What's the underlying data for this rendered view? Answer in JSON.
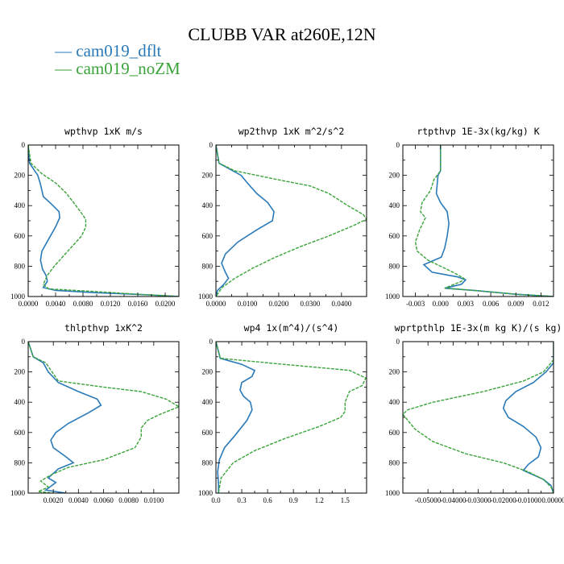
{
  "figure": {
    "title": "CLUBB VAR at260E,12N",
    "legend": [
      {
        "label": "— cam019_dflt",
        "color": "#2a7ab9"
      },
      {
        "label": "— cam019_noZM",
        "color": "#3aa33a"
      }
    ]
  },
  "chart_data": [
    {
      "type": "line",
      "title": "wpthvp  1xK m/s",
      "xlim": [
        0.0,
        0.022
      ],
      "ylim": [
        1000,
        0
      ],
      "xticks": [
        "0.0000",
        "0.0040",
        "0.0080",
        "0.0120",
        "0.0160",
        "0.0200"
      ],
      "xtick_values": [
        0.0,
        0.004,
        0.008,
        0.012,
        0.016,
        0.02
      ],
      "yticks": [
        "0",
        "200",
        "400",
        "600",
        "800",
        "1000"
      ],
      "ytick_values": [
        0,
        200,
        400,
        600,
        800,
        1000
      ],
      "series": [
        {
          "name": "cam019_dflt",
          "color": "#2a7ab9",
          "x": [
            0.0,
            0.0002,
            0.0008,
            0.0014,
            0.0018,
            0.0022,
            0.0034,
            0.0045,
            0.0046,
            0.004,
            0.003,
            0.002,
            0.0018,
            0.0021,
            0.0026,
            0.0028,
            0.0022,
            0.004,
            0.01,
            0.018,
            0.022
          ],
          "y": [
            0,
            120,
            160,
            200,
            260,
            340,
            390,
            440,
            480,
            540,
            620,
            700,
            760,
            820,
            860,
            900,
            940,
            960,
            975,
            990,
            1000
          ]
        },
        {
          "name": "cam019_noZM",
          "color": "#3aa33a",
          "x": [
            0.0,
            0.0004,
            0.002,
            0.004,
            0.0056,
            0.0068,
            0.0078,
            0.0084,
            0.0084,
            0.0078,
            0.0064,
            0.005,
            0.0038,
            0.0028,
            0.0022,
            0.003,
            0.009,
            0.016,
            0.022
          ],
          "y": [
            0,
            120,
            190,
            250,
            320,
            390,
            450,
            490,
            540,
            600,
            670,
            740,
            800,
            860,
            920,
            950,
            965,
            985,
            1000
          ]
        }
      ]
    },
    {
      "type": "line",
      "title": "wp2thvp  1xK m^2/s^2",
      "xlim": [
        0.0,
        0.048
      ],
      "ylim": [
        1000,
        0
      ],
      "xticks": [
        "0.0000",
        "0.0100",
        "0.0200",
        "0.0300",
        "0.0400"
      ],
      "xtick_values": [
        0.0,
        0.01,
        0.02,
        0.03,
        0.04
      ],
      "yticks": [
        "0",
        "200",
        "400",
        "600",
        "800",
        "1000"
      ],
      "ytick_values": [
        0,
        200,
        400,
        600,
        800,
        1000
      ],
      "series": [
        {
          "name": "cam019_dflt",
          "color": "#2a7ab9",
          "x": [
            0.0,
            0.001,
            0.008,
            0.01,
            0.013,
            0.0165,
            0.0185,
            0.018,
            0.013,
            0.007,
            0.003,
            0.0018,
            0.003,
            0.004,
            0.0025,
            0.0005,
            0.0
          ],
          "y": [
            0,
            120,
            200,
            250,
            320,
            380,
            440,
            500,
            560,
            640,
            720,
            780,
            840,
            880,
            920,
            960,
            1000
          ]
        },
        {
          "name": "cam019_noZM",
          "color": "#3aa33a",
          "x": [
            0.0,
            0.001,
            0.006,
            0.02,
            0.03,
            0.036,
            0.042,
            0.047,
            0.048,
            0.044,
            0.036,
            0.027,
            0.019,
            0.012,
            0.006,
            0.002,
            0.0
          ],
          "y": [
            0,
            120,
            170,
            230,
            270,
            320,
            400,
            460,
            490,
            530,
            600,
            670,
            740,
            810,
            880,
            940,
            1000
          ]
        }
      ]
    },
    {
      "type": "line",
      "title": "rtpthvp  1E-3x(kg/kg) K",
      "xlim": [
        -0.0045,
        0.0135
      ],
      "ylim": [
        1000,
        0
      ],
      "xticks": [
        "-0.003",
        "0.000",
        "0.003",
        "0.006",
        "0.009",
        "0.012"
      ],
      "xtick_values": [
        -0.003,
        0.0,
        0.003,
        0.006,
        0.009,
        0.012
      ],
      "yticks": [
        "0",
        "200",
        "400",
        "600",
        "800",
        "1000"
      ],
      "ytick_values": [
        0,
        200,
        400,
        600,
        800,
        1000
      ],
      "series": [
        {
          "name": "cam019_dflt",
          "color": "#2a7ab9",
          "x": [
            0.0,
            0.0,
            -0.0003,
            -0.0005,
            0.0,
            0.0008,
            0.001,
            0.0008,
            0.0005,
            0.0001,
            -0.002,
            -0.001,
            0.002,
            0.003,
            0.0025,
            0.0005,
            0.004,
            0.009,
            0.0135
          ],
          "y": [
            0,
            170,
            200,
            320,
            380,
            440,
            520,
            600,
            680,
            740,
            790,
            840,
            870,
            890,
            920,
            945,
            960,
            985,
            1000
          ]
        },
        {
          "name": "cam019_noZM",
          "color": "#3aa33a",
          "x": [
            0.0,
            0.0,
            -0.0008,
            -0.0012,
            -0.0022,
            -0.0024,
            -0.0018,
            -0.0025,
            -0.003,
            -0.0028,
            -0.0015,
            0.0015,
            0.0028,
            0.0025,
            0.0005,
            0.004,
            0.009,
            0.0135
          ],
          "y": [
            0,
            170,
            230,
            300,
            380,
            440,
            480,
            560,
            640,
            700,
            760,
            840,
            880,
            900,
            945,
            960,
            985,
            1000
          ]
        }
      ]
    },
    {
      "type": "line",
      "title": "thlpthvp  1xK^2",
      "xlim": [
        0.0,
        0.012
      ],
      "ylim": [
        1000,
        0
      ],
      "xticks": [
        "0.0020",
        "0.0040",
        "0.0060",
        "0.0080",
        "0.0100"
      ],
      "xtick_values": [
        0.002,
        0.004,
        0.006,
        0.008,
        0.01
      ],
      "yticks": [
        "0",
        "200",
        "400",
        "600",
        "800",
        "1000"
      ],
      "ytick_values": [
        0,
        200,
        400,
        600,
        800,
        1000
      ],
      "series": [
        {
          "name": "cam019_dflt",
          "color": "#2a7ab9",
          "x": [
            0.0,
            0.0004,
            0.0012,
            0.0016,
            0.0024,
            0.004,
            0.0055,
            0.0058,
            0.0048,
            0.0032,
            0.0022,
            0.0018,
            0.002,
            0.003,
            0.0036,
            0.0024,
            0.0016,
            0.0022,
            0.0014,
            0.003
          ],
          "y": [
            0,
            100,
            140,
            200,
            270,
            330,
            380,
            420,
            470,
            540,
            600,
            650,
            700,
            760,
            800,
            840,
            900,
            930,
            980,
            1000
          ]
        },
        {
          "name": "cam019_noZM",
          "color": "#3aa33a",
          "x": [
            0.0,
            0.0004,
            0.0014,
            0.0024,
            0.006,
            0.009,
            0.011,
            0.012,
            0.0105,
            0.0095,
            0.009,
            0.009,
            0.0085,
            0.006,
            0.0032,
            0.0018,
            0.001,
            0.0016,
            0.0008,
            0.002
          ],
          "y": [
            0,
            100,
            140,
            260,
            300,
            330,
            380,
            430,
            480,
            520,
            570,
            630,
            700,
            780,
            830,
            880,
            920,
            960,
            990,
            1000
          ]
        }
      ]
    },
    {
      "type": "line",
      "title": "wp4  1x(m^4)/(s^4)",
      "xlim": [
        0.0,
        1.75
      ],
      "ylim": [
        1000,
        0
      ],
      "xticks": [
        "0.0",
        "0.3",
        "0.6",
        "0.9",
        "1.2",
        "1.5"
      ],
      "xtick_values": [
        0.0,
        0.3,
        0.6,
        0.9,
        1.2,
        1.5
      ],
      "yticks": [
        "0",
        "200",
        "400",
        "600",
        "800",
        "1000"
      ],
      "ytick_values": [
        0,
        200,
        400,
        600,
        800,
        1000
      ],
      "series": [
        {
          "name": "cam019_dflt",
          "color": "#2a7ab9",
          "x": [
            0.0,
            0.05,
            0.3,
            0.45,
            0.42,
            0.3,
            0.28,
            0.32,
            0.4,
            0.42,
            0.36,
            0.22,
            0.1,
            0.04,
            0.02,
            0.03,
            0.03
          ],
          "y": [
            0,
            110,
            150,
            190,
            230,
            270,
            320,
            360,
            400,
            450,
            520,
            620,
            700,
            780,
            860,
            940,
            1000
          ]
        },
        {
          "name": "cam019_noZM",
          "color": "#3aa33a",
          "x": [
            0.0,
            0.05,
            0.6,
            1.55,
            1.74,
            1.7,
            1.55,
            1.5,
            1.5,
            1.45,
            1.2,
            0.8,
            0.45,
            0.2,
            0.06,
            0.03
          ],
          "y": [
            0,
            110,
            140,
            190,
            240,
            290,
            330,
            400,
            460,
            500,
            560,
            640,
            720,
            800,
            900,
            1000
          ]
        }
      ]
    },
    {
      "type": "line",
      "title": "wprtpthlp  1E-3x(m kg K)/(s kg)",
      "xlim": [
        -0.06,
        0.0
      ],
      "ylim": [
        1000,
        0
      ],
      "xticks": [
        "-0.05000",
        "-0.04000",
        "-0.03000",
        "-0.02000",
        "-0.01000",
        "0.00000"
      ],
      "xtick_values": [
        -0.05,
        -0.04,
        -0.03,
        -0.02,
        -0.01,
        0.0
      ],
      "yticks": [
        "0",
        "200",
        "400",
        "600",
        "800",
        "1000"
      ],
      "ytick_values": [
        0,
        200,
        400,
        600,
        800,
        1000
      ],
      "series": [
        {
          "name": "cam019_dflt",
          "color": "#2a7ab9",
          "x": [
            0.0,
            0.0,
            -0.003,
            -0.008,
            -0.015,
            -0.019,
            -0.02,
            -0.018,
            -0.012,
            -0.007,
            -0.005,
            -0.006,
            -0.01,
            -0.012,
            -0.008,
            -0.004,
            -0.001,
            0.0
          ],
          "y": [
            0,
            140,
            200,
            270,
            330,
            390,
            440,
            500,
            560,
            630,
            700,
            760,
            810,
            850,
            880,
            910,
            950,
            1000
          ]
        },
        {
          "name": "cam019_noZM",
          "color": "#3aa33a",
          "x": [
            0.0,
            0.0,
            -0.004,
            -0.012,
            -0.028,
            -0.048,
            -0.058,
            -0.06,
            -0.058,
            -0.055,
            -0.048,
            -0.035,
            -0.02,
            -0.01,
            -0.004,
            -0.001,
            0.0
          ],
          "y": [
            0,
            120,
            200,
            260,
            330,
            400,
            450,
            480,
            520,
            580,
            660,
            740,
            800,
            860,
            910,
            960,
            1000
          ]
        }
      ]
    }
  ]
}
